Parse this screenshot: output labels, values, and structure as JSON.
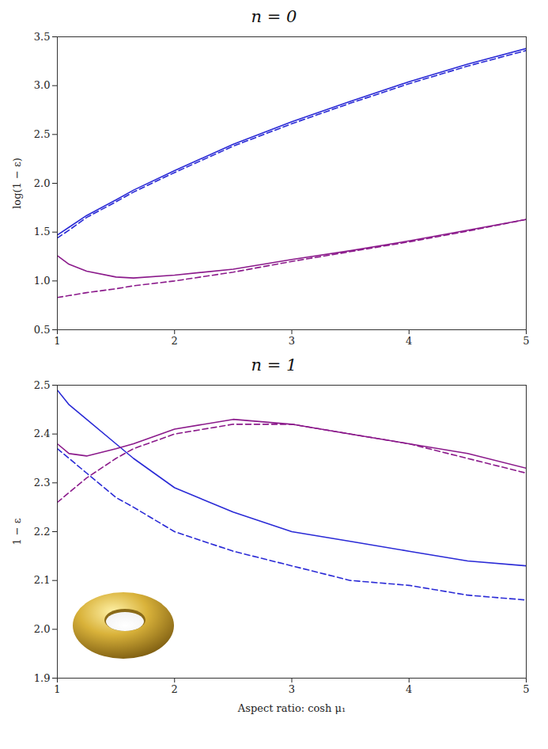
{
  "chart_data": [
    {
      "type": "line",
      "title": "n = 0",
      "ylabel": "log(1 − ε)",
      "x": [
        1,
        1.1,
        1.25,
        1.5,
        1.65,
        2,
        2.5,
        3,
        3.5,
        4,
        4.5,
        5
      ],
      "xlim": [
        1,
        5
      ],
      "xticks": [
        1,
        2,
        3,
        4,
        5
      ],
      "ylim": [
        0.5,
        3.5
      ],
      "yticks": [
        {
          "value": 0.5,
          "label": "0.5"
        },
        {
          "value": 1,
          "label": "1.0"
        },
        {
          "value": 1.5,
          "label": "1.5"
        },
        {
          "value": 2,
          "label": "2.0"
        },
        {
          "value": 2.5,
          "label": "2.5"
        },
        {
          "value": 3,
          "label": "3.0"
        },
        {
          "value": 3.5,
          "label": "3.5"
        }
      ],
      "series": [
        {
          "color": "#2a2ad6",
          "line_style": "solid",
          "values": [
            1.47,
            1.55,
            1.67,
            1.83,
            1.93,
            2.13,
            2.4,
            2.63,
            2.84,
            3.04,
            3.22,
            3.38
          ]
        },
        {
          "color": "#2a2ad6",
          "line_style": "dashed",
          "values": [
            1.44,
            1.52,
            1.65,
            1.81,
            1.91,
            2.11,
            2.38,
            2.61,
            2.82,
            3.02,
            3.2,
            3.36
          ]
        },
        {
          "color": "#8b1a8b",
          "line_style": "solid",
          "values": [
            1.26,
            1.17,
            1.1,
            1.04,
            1.03,
            1.06,
            1.12,
            1.22,
            1.31,
            1.41,
            1.52,
            1.63
          ]
        },
        {
          "color": "#8b1a8b",
          "line_style": "dashed",
          "values": [
            0.83,
            0.85,
            0.88,
            0.92,
            0.95,
            1.0,
            1.09,
            1.2,
            1.3,
            1.4,
            1.51,
            1.63
          ]
        }
      ]
    },
    {
      "type": "line",
      "title": "n = 1",
      "ylabel": "1 − ε",
      "xlabel": "Aspect ratio: cosh μ₁",
      "x": [
        1,
        1.1,
        1.25,
        1.5,
        1.65,
        2,
        2.5,
        3,
        3.5,
        4,
        4.5,
        5
      ],
      "xlim": [
        1,
        5
      ],
      "xticks": [
        1,
        2,
        3,
        4,
        5
      ],
      "ylim": [
        1.9,
        2.5
      ],
      "yticks": [
        1.9,
        {
          "value": 2,
          "label": "2.0"
        },
        2.1,
        2.2,
        2.3,
        2.4,
        2.5
      ],
      "series": [
        {
          "color": "#2a2ad6",
          "line_style": "solid",
          "values": [
            2.49,
            2.46,
            2.43,
            2.38,
            2.35,
            2.29,
            2.24,
            2.2,
            2.18,
            2.16,
            2.14,
            2.13
          ]
        },
        {
          "color": "#2a2ad6",
          "line_style": "dashed",
          "values": [
            2.37,
            2.35,
            2.32,
            2.27,
            2.25,
            2.2,
            2.16,
            2.13,
            2.1,
            2.09,
            2.07,
            2.06
          ]
        },
        {
          "color": "#8b1a8b",
          "line_style": "solid",
          "values": [
            2.38,
            2.36,
            2.355,
            2.37,
            2.38,
            2.41,
            2.43,
            2.42,
            2.4,
            2.38,
            2.36,
            2.33
          ]
        },
        {
          "color": "#8b1a8b",
          "line_style": "dashed",
          "values": [
            2.26,
            2.28,
            2.31,
            2.35,
            2.37,
            2.4,
            2.42,
            2.42,
            2.4,
            2.38,
            2.35,
            2.32
          ]
        }
      ]
    }
  ]
}
